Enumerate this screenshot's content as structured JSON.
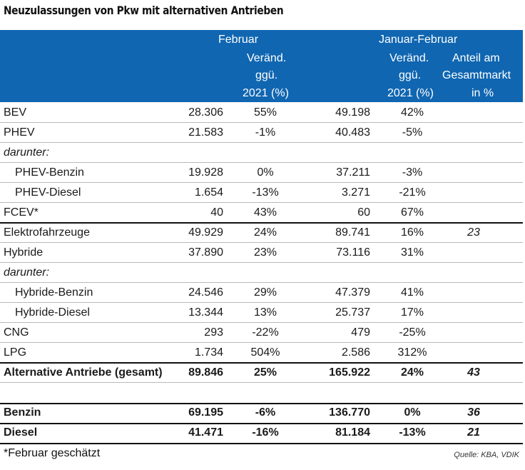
{
  "title": "Neuzulassungen von Pkw mit alternativen Antrieben",
  "header": {
    "group_feb": "Februar",
    "group_jf": "Januar-Februar",
    "feb_change": [
      "Veränd.",
      "ggü.",
      "2021 (%)"
    ],
    "jf_change": [
      "Veränd.",
      "ggü.",
      "2021 (%)"
    ],
    "share": [
      "Anteil am",
      "Gesamtmarkt",
      "in %"
    ]
  },
  "rows": [
    {
      "label": "BEV",
      "feb": "28.306",
      "feb_pct": "55%",
      "jf": "49.198",
      "jf_pct": "42%",
      "share": ""
    },
    {
      "label": "PHEV",
      "feb": "21.583",
      "feb_pct": "-1%",
      "jf": "40.483",
      "jf_pct": "-5%",
      "share": ""
    },
    {
      "label": "darunter:",
      "feb": "",
      "feb_pct": "",
      "jf": "",
      "jf_pct": "",
      "share": ""
    },
    {
      "label": "PHEV-Benzin",
      "feb": "19.928",
      "feb_pct": "0%",
      "jf": "37.211",
      "jf_pct": "-3%",
      "share": ""
    },
    {
      "label": "PHEV-Diesel",
      "feb": "1.654",
      "feb_pct": "-13%",
      "jf": "3.271",
      "jf_pct": "-21%",
      "share": ""
    },
    {
      "label": "FCEV*",
      "feb": "40",
      "feb_pct": "43%",
      "jf": "60",
      "jf_pct": "67%",
      "share": ""
    },
    {
      "label": "Elektrofahrzeuge",
      "feb": "49.929",
      "feb_pct": "24%",
      "jf": "89.741",
      "jf_pct": "16%",
      "share": "23"
    },
    {
      "label": "Hybride",
      "feb": "37.890",
      "feb_pct": "23%",
      "jf": "73.116",
      "jf_pct": "31%",
      "share": ""
    },
    {
      "label": "darunter:",
      "feb": "",
      "feb_pct": "",
      "jf": "",
      "jf_pct": "",
      "share": ""
    },
    {
      "label": "Hybride-Benzin",
      "feb": "24.546",
      "feb_pct": "29%",
      "jf": "47.379",
      "jf_pct": "41%",
      "share": ""
    },
    {
      "label": "Hybride-Diesel",
      "feb": "13.344",
      "feb_pct": "13%",
      "jf": "25.737",
      "jf_pct": "17%",
      "share": ""
    },
    {
      "label": "CNG",
      "feb": "293",
      "feb_pct": "-22%",
      "jf": "479",
      "jf_pct": "-25%",
      "share": ""
    },
    {
      "label": "LPG",
      "feb": "1.734",
      "feb_pct": "504%",
      "jf": "2.586",
      "jf_pct": "312%",
      "share": ""
    },
    {
      "label": "Alternative Antriebe (gesamt)",
      "feb": "89.846",
      "feb_pct": "25%",
      "jf": "165.922",
      "jf_pct": "24%",
      "share": "43"
    },
    {
      "label": "",
      "feb": "",
      "feb_pct": "",
      "jf": "",
      "jf_pct": "",
      "share": ""
    },
    {
      "label": "Benzin",
      "feb": "69.195",
      "feb_pct": "-6%",
      "jf": "136.770",
      "jf_pct": "0%",
      "share": "36"
    },
    {
      "label": "Diesel",
      "feb": "41.471",
      "feb_pct": "-16%",
      "jf": "81.184",
      "jf_pct": "-13%",
      "share": "21"
    }
  ],
  "footnote": "*Februar geschätzt",
  "source": "Quelle: KBA, VDIK"
}
